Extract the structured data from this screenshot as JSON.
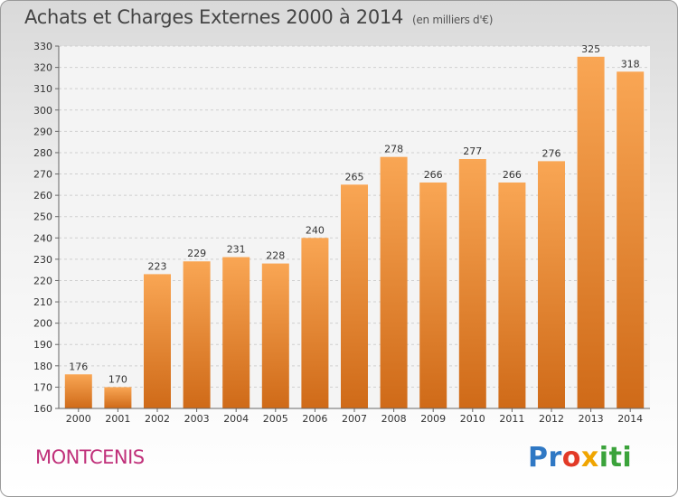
{
  "header": {
    "title": "Achats et Charges Externes 2000 à 2014",
    "unit": "(en milliers d'€)"
  },
  "footer": {
    "town": "MONTCENIS",
    "logo": "Proxiti"
  },
  "colors": {
    "bar_top": "#f9a654",
    "bar_bottom": "#cf6a18",
    "town": "#c0307a"
  },
  "chart_data": {
    "type": "bar",
    "title": "Achats et Charges Externes 2000 à 2014",
    "unit": "(en milliers d'€)",
    "categories": [
      "2000",
      "2001",
      "2002",
      "2003",
      "2004",
      "2005",
      "2006",
      "2007",
      "2008",
      "2009",
      "2010",
      "2011",
      "2012",
      "2013",
      "2014"
    ],
    "values": [
      176,
      170,
      223,
      229,
      231,
      228,
      240,
      265,
      278,
      266,
      277,
      266,
      276,
      325,
      318
    ],
    "ylim": [
      160,
      330
    ],
    "yticks": [
      160,
      170,
      180,
      190,
      200,
      210,
      220,
      230,
      240,
      250,
      260,
      270,
      280,
      290,
      300,
      310,
      320,
      330
    ],
    "grid": true,
    "data_labels": true,
    "legend": "none"
  }
}
